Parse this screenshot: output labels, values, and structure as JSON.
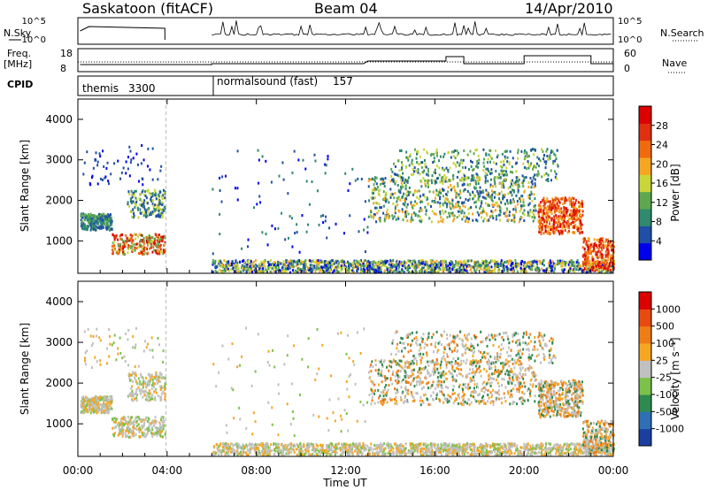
{
  "header": {
    "title": "Saskatoon (fitACF)",
    "beam": "Beam 04",
    "date": "14/Apr/2010"
  },
  "strip": {
    "nsky_label": "N.Sky",
    "nsearch_label": "N.Search",
    "freq_label": "Freq.",
    "freq_unit": "[MHz]",
    "nave_label": "Nave",
    "cpid_label": "CPID",
    "noise_ticks_left": [
      "10^5",
      "10^0"
    ],
    "noise_ticks_right": [
      "10^5",
      "10^0"
    ],
    "freq_ticks": [
      "18",
      "8"
    ],
    "nave_ticks": [
      "60",
      "0"
    ],
    "cpid_segments": [
      {
        "name": "themis",
        "id": "3300"
      },
      {
        "name": "normalsound (fast)",
        "id": "157"
      }
    ]
  },
  "colors": {
    "power_scale": [
      "#0000ee",
      "#1f4fa6",
      "#2f8a6f",
      "#5fa84f",
      "#c8d63a",
      "#f5a623",
      "#f06a10",
      "#e03010",
      "#dd0000"
    ],
    "velocity_scale": [
      "#1a3fa0",
      "#2e6fb5",
      "#2f8a4f",
      "#7cc24a",
      "#c0c0c0",
      "#f5a623",
      "#ef7d16",
      "#e94a10",
      "#dd0000"
    ]
  },
  "chart_data": [
    {
      "type": "heatmap",
      "name": "power",
      "ylabel": "Slant Range [km]",
      "yticks": [
        1000,
        2000,
        3000,
        4000
      ],
      "ylim": [
        200,
        4500
      ],
      "xlim": [
        0,
        24
      ],
      "colorbar_label": "Power [dB]",
      "colorbar_ticks": [
        "4",
        "8",
        "12",
        "16",
        "20",
        "24",
        "28"
      ],
      "colorbar_range": [
        0,
        30
      ],
      "gap_hours": [
        4,
        6
      ]
    },
    {
      "type": "heatmap",
      "name": "velocity",
      "ylabel": "Slant Range [km]",
      "yticks": [
        1000,
        2000,
        3000,
        4000
      ],
      "ylim": [
        200,
        4500
      ],
      "xlim": [
        0,
        24
      ],
      "xlabel": "Time UT",
      "xticks": [
        "00:00",
        "04:00",
        "08:00",
        "12:00",
        "16:00",
        "20:00",
        "00:00"
      ],
      "colorbar_label": "Velocity [m s⁻¹]",
      "colorbar_ticks": [
        "1000",
        "500",
        "100",
        "25",
        "-25",
        "-100",
        "-500",
        "-1000"
      ],
      "gap_hours": [
        4,
        6
      ]
    }
  ]
}
